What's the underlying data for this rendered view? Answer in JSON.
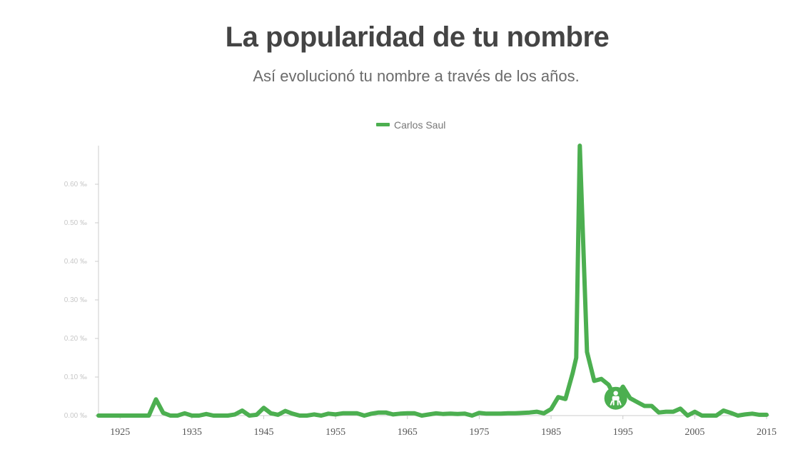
{
  "header": {
    "title": "La popularidad de tu nombre",
    "subtitle": "Así evolucionó tu nombre a través de los años."
  },
  "colors": {
    "series": "#4caf50",
    "title": "#444444",
    "subtitle": "#6b6b6b",
    "axis": "#cccccc",
    "tick_label_y": "#c8c8c8",
    "tick_label_x": "#555555",
    "marker_icon": "#ffffff"
  },
  "marker": {
    "icon": "baby-icon",
    "year": 1994,
    "value": 0.045
  },
  "chart_data": {
    "type": "line",
    "title": "La popularidad de tu nombre",
    "subtitle": "Así evolucionó tu nombre a través de los años.",
    "xlabel": "",
    "ylabel": "",
    "legend": {
      "position": "top-center",
      "entries": [
        "Carlos Saul"
      ]
    },
    "grid": false,
    "xlim": [
      1922,
      2015
    ],
    "ylim": [
      0,
      0.7
    ],
    "x_ticks": [
      "1925",
      "1935",
      "1945",
      "1955",
      "1965",
      "1975",
      "1985",
      "1995",
      "2005",
      "2015"
    ],
    "y_ticks": [
      "0.00 ‰",
      "0.10 ‰",
      "0.20 ‰",
      "0.30 ‰",
      "0.40 ‰",
      "0.50 ‰",
      "0.60 ‰"
    ],
    "y_tick_values": [
      0,
      0.1,
      0.2,
      0.3,
      0.4,
      0.5,
      0.6
    ],
    "series": [
      {
        "name": "Carlos Saul",
        "x": [
          1922,
          1923,
          1924,
          1925,
          1926,
          1927,
          1928,
          1929,
          1930,
          1931,
          1932,
          1933,
          1934,
          1935,
          1936,
          1937,
          1938,
          1939,
          1940,
          1941,
          1942,
          1943,
          1944,
          1945,
          1946,
          1947,
          1948,
          1949,
          1950,
          1951,
          1952,
          1953,
          1954,
          1955,
          1956,
          1957,
          1958,
          1959,
          1960,
          1961,
          1962,
          1963,
          1964,
          1965,
          1966,
          1967,
          1968,
          1969,
          1970,
          1971,
          1972,
          1973,
          1974,
          1975,
          1976,
          1977,
          1978,
          1979,
          1980,
          1981,
          1982,
          1983,
          1984,
          1985,
          1986,
          1987,
          1988,
          1988.5,
          1989,
          1990,
          1991,
          1992,
          1993,
          1994,
          1995,
          1996,
          1997,
          1998,
          1999,
          2000,
          2001,
          2002,
          2003,
          2004,
          2005,
          2006,
          2007,
          2008,
          2009,
          2010,
          2011,
          2012,
          2013,
          2014,
          2015
        ],
        "values": [
          0.0,
          0.0,
          0.0,
          0.0,
          0.0,
          0.0,
          0.0,
          0.0,
          0.042,
          0.007,
          0.0,
          0.0,
          0.006,
          0.0,
          0.0,
          0.004,
          0.0,
          0.0,
          0.0,
          0.003,
          0.013,
          0.0,
          0.002,
          0.02,
          0.006,
          0.002,
          0.012,
          0.005,
          0.0,
          0.0,
          0.003,
          0.0,
          0.005,
          0.003,
          0.006,
          0.006,
          0.006,
          0.0,
          0.005,
          0.008,
          0.008,
          0.003,
          0.005,
          0.006,
          0.006,
          0.0,
          0.003,
          0.006,
          0.004,
          0.005,
          0.004,
          0.005,
          0.0,
          0.007,
          0.005,
          0.005,
          0.005,
          0.006,
          0.006,
          0.007,
          0.008,
          0.01,
          0.006,
          0.017,
          0.048,
          0.043,
          0.11,
          0.15,
          0.7,
          0.165,
          0.09,
          0.095,
          0.08,
          0.045,
          0.075,
          0.045,
          0.035,
          0.025,
          0.025,
          0.008,
          0.01,
          0.01,
          0.018,
          0.0,
          0.01,
          0.0,
          0.0,
          0.0,
          0.013,
          0.007,
          0.0,
          0.003,
          0.005,
          0.002,
          0.002
        ]
      }
    ]
  }
}
